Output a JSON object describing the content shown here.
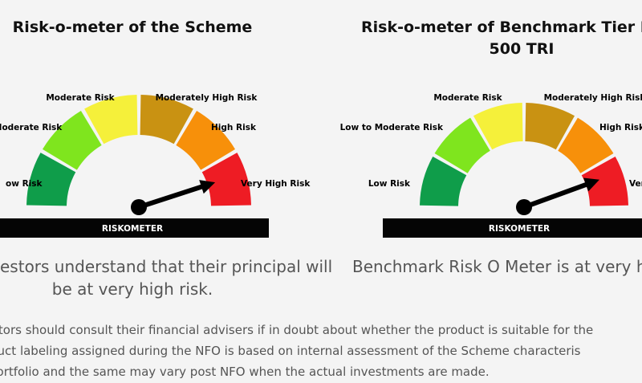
{
  "scheme": {
    "title": "Risk-o-meter of the Scheme",
    "caption_line1": "estors understand that their principal will",
    "caption_line2": "be at very high risk."
  },
  "benchmark": {
    "title_line1": "Risk-o-meter of Benchmark Tier I: N",
    "title_line2": "500 TRI",
    "caption": "Benchmark Risk O Meter is at very high"
  },
  "riskometer": {
    "bar_label": "RISKOMETER",
    "segments": [
      {
        "label": "Low Risk",
        "color": "#0f9d4a"
      },
      {
        "label": "Low to Moderate Risk",
        "color": "#7fe51e"
      },
      {
        "label": "Moderate Risk",
        "color": "#f5f03a"
      },
      {
        "label": "Moderately High Risk",
        "color": "#c99212"
      },
      {
        "label": "High Risk",
        "color": "#f7900a"
      },
      {
        "label": "Very High Risk",
        "color": "#ee1c24"
      }
    ],
    "scheme_visible_labels": [
      "ow Risk",
      "Moderate Risk",
      "Moderate Risk",
      "Moderately High Risk",
      "High Risk",
      "Very High Risk"
    ],
    "benchmark_visible_labels": [
      "Low Risk",
      "Low to Moderate Risk",
      "Moderate Risk",
      "Moderately High Risk",
      "High Risk",
      "Ver"
    ],
    "needle_level": "Very High Risk"
  },
  "disclaimer": {
    "line1": "vestors should consult their financial advisers if in doubt about whether the product is suitable for the",
    "line2": "roduct labeling assigned during the NFO is based on internal assessment of the Scheme characteris",
    "line3": "e portfolio and the same may vary post NFO when the actual investments are made."
  }
}
